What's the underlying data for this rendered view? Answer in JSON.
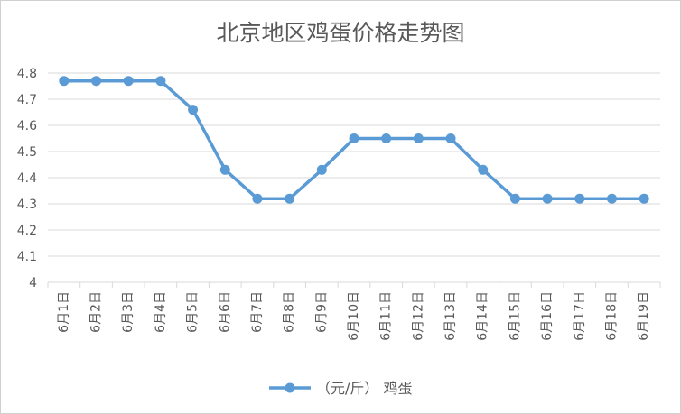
{
  "chart_data": {
    "type": "line",
    "title": "北京地区鸡蛋价格走势图",
    "xlabel": "",
    "ylabel": "",
    "categories": [
      "6月1日",
      "6月2日",
      "6月3日",
      "6月4日",
      "6月5日",
      "6月6日",
      "6月7日",
      "6月8日",
      "6月9日",
      "6月10日",
      "6月11日",
      "6月12日",
      "6月13日",
      "6月14日",
      "6月15日",
      "6月16日",
      "6月17日",
      "6月18日",
      "6月19日"
    ],
    "series": [
      {
        "name": "（元/斤） 鸡蛋",
        "values": [
          4.77,
          4.77,
          4.77,
          4.77,
          4.66,
          4.43,
          4.32,
          4.32,
          4.43,
          4.55,
          4.55,
          4.55,
          4.55,
          4.43,
          4.32,
          4.32,
          4.32,
          4.32,
          4.32
        ]
      }
    ],
    "ylim": [
      4,
      4.8
    ],
    "yticks": [
      "4",
      "4.1",
      "4.2",
      "4.3",
      "4.4",
      "4.5",
      "4.6",
      "4.7",
      "4.8"
    ],
    "grid": true,
    "legend_position": "bottom",
    "colors": {
      "series": "#5b9bd5",
      "grid": "#d9d9d9",
      "text": "#595959"
    }
  }
}
